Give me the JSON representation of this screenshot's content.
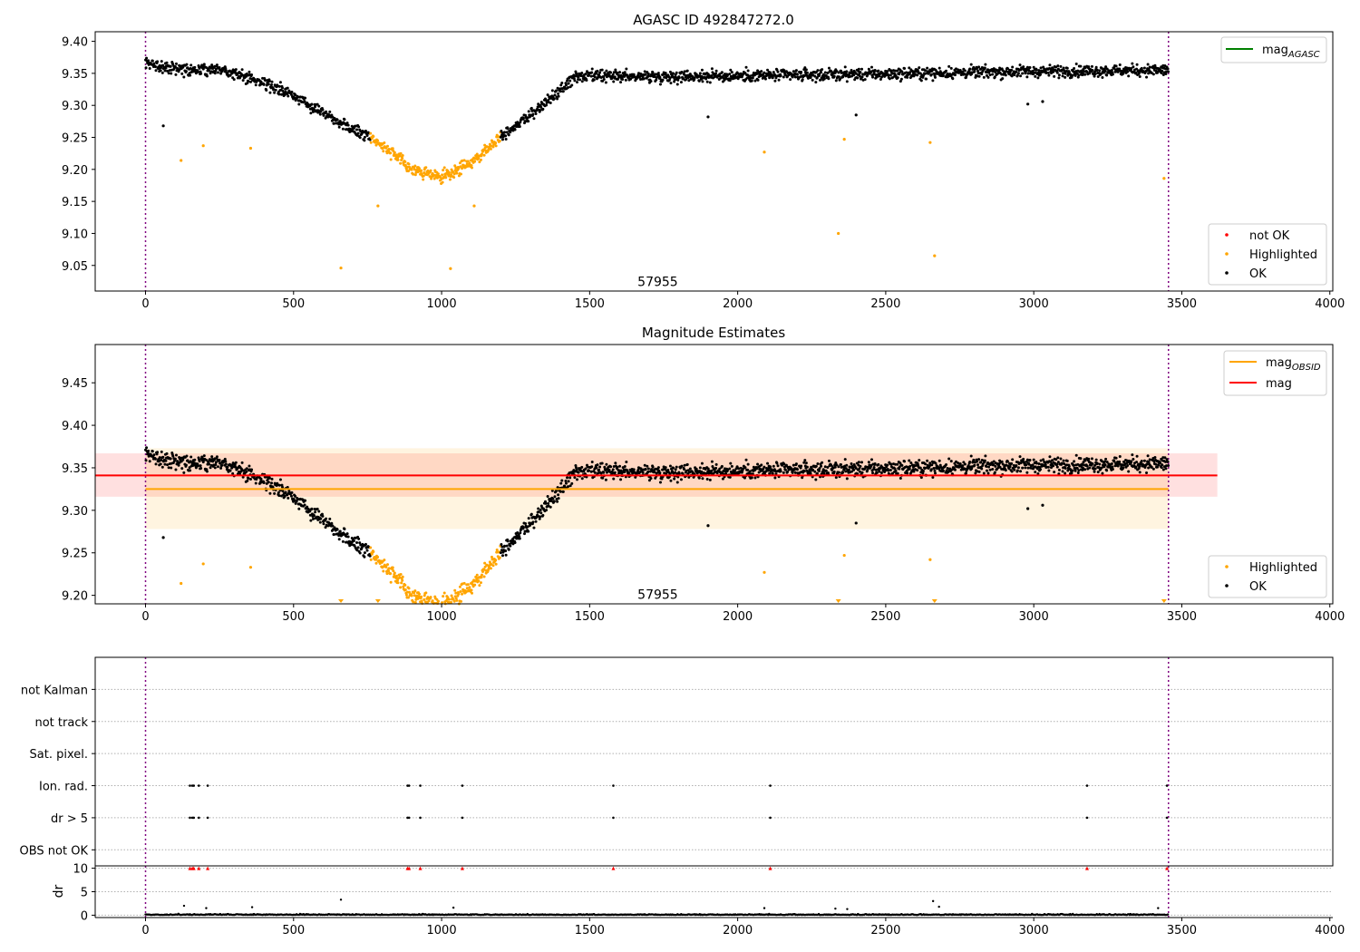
{
  "chart_data": [
    {
      "type": "scatter",
      "title": "AGASC ID 492847272.0",
      "xlim": [
        -170,
        4010
      ],
      "ylim": [
        9.01,
        9.415
      ],
      "x_ticks": [
        0,
        500,
        1000,
        1500,
        2000,
        2500,
        3000,
        3500,
        4000
      ],
      "y_ticks": [
        9.05,
        9.1,
        9.15,
        9.2,
        9.25,
        9.3,
        9.35,
        9.4
      ],
      "vlines": [
        0,
        3455
      ],
      "vline_color": "#800080",
      "annotation": {
        "text": "57955",
        "x": 1730,
        "y": 9.025
      },
      "line_legend": {
        "label": "mag",
        "sub": "AGASC",
        "color": "#008000",
        "position": "top-right"
      },
      "marker_legend": {
        "position": "lower-right",
        "items": [
          {
            "label": "not OK",
            "color": "#ff0000"
          },
          {
            "label": "Highlighted",
            "color": "#ffa500"
          },
          {
            "label": "OK",
            "color": "#000000"
          }
        ]
      },
      "series": [
        {
          "name": "OK",
          "color": "#000000",
          "trend": [
            [
              0,
              9.365
            ],
            [
              150,
              9.355
            ],
            [
              250,
              9.357
            ],
            [
              400,
              9.335
            ],
            [
              500,
              9.315
            ],
            [
              600,
              9.29
            ],
            [
              700,
              9.262
            ],
            [
              760,
              9.252
            ],
            [
              900,
              9.2
            ],
            [
              1000,
              9.187
            ],
            [
              1100,
              9.21
            ],
            [
              1200,
              9.252
            ],
            [
              1300,
              9.285
            ],
            [
              1400,
              9.322
            ],
            [
              1450,
              9.345
            ],
            [
              2000,
              9.346
            ],
            [
              2500,
              9.349
            ],
            [
              2950,
              9.353
            ],
            [
              3455,
              9.355
            ]
          ],
          "band": [
            [
              0,
              760
            ],
            [
              1200,
              3455
            ]
          ],
          "outliers": [
            [
              60,
              9.268
            ],
            [
              1900,
              9.282
            ],
            [
              2400,
              9.285
            ],
            [
              2980,
              9.302
            ],
            [
              3030,
              9.306
            ]
          ]
        },
        {
          "name": "Highlighted",
          "color": "#ffa500",
          "band": [
            [
              660,
              1230
            ]
          ],
          "outliers": [
            [
              120,
              9.214
            ],
            [
              195,
              9.237
            ],
            [
              355,
              9.233
            ],
            [
              660,
              9.046
            ],
            [
              785,
              9.143
            ],
            [
              1030,
              9.045
            ],
            [
              1110,
              9.143
            ],
            [
              2090,
              9.227
            ],
            [
              2340,
              9.1
            ],
            [
              2360,
              9.247
            ],
            [
              2650,
              9.242
            ],
            [
              2665,
              9.065
            ],
            [
              3440,
              9.186
            ]
          ]
        }
      ]
    },
    {
      "type": "scatter",
      "title": "Magnitude Estimates",
      "xlim": [
        -170,
        4010
      ],
      "ylim": [
        9.19,
        9.495
      ],
      "x_ticks": [
        0,
        500,
        1000,
        1500,
        2000,
        2500,
        3000,
        3500,
        4000
      ],
      "y_ticks": [
        9.2,
        9.25,
        9.3,
        9.35,
        9.4,
        9.45
      ],
      "vlines": [
        0,
        3455
      ],
      "annotation": {
        "text": "57955",
        "x": 1730,
        "y": 9.201
      },
      "line_legend": {
        "position": "top-right",
        "items": [
          {
            "label": "mag",
            "sub": "OBSID",
            "color": "#ffa500"
          },
          {
            "label": "mag",
            "sub": "",
            "color": "#ff0000"
          }
        ]
      },
      "marker_legend": {
        "position": "lower-right",
        "items": [
          {
            "label": "Highlighted",
            "color": "#ffa500"
          },
          {
            "label": "OK",
            "color": "#000000"
          }
        ]
      },
      "hlines": [
        {
          "y": 9.341,
          "x0": -170,
          "x1": 3620,
          "color": "#ff0000",
          "band": [
            9.316,
            9.367
          ],
          "band_color": "#ff0000",
          "band_opacity": 0.12
        },
        {
          "y": 9.325,
          "x0": 0,
          "x1": 3455,
          "color": "#ffa500",
          "band": [
            9.278,
            9.373
          ],
          "band_color": "#ffa500",
          "band_opacity": 0.12
        }
      ],
      "series": [
        {
          "name": "OK",
          "color": "#000000",
          "trend": [
            [
              0,
              9.365
            ],
            [
              150,
              9.355
            ],
            [
              250,
              9.357
            ],
            [
              400,
              9.335
            ],
            [
              500,
              9.315
            ],
            [
              600,
              9.29
            ],
            [
              700,
              9.262
            ],
            [
              760,
              9.252
            ],
            [
              900,
              9.2
            ],
            [
              1000,
              9.187
            ],
            [
              1100,
              9.21
            ],
            [
              1200,
              9.252
            ],
            [
              1300,
              9.285
            ],
            [
              1400,
              9.322
            ],
            [
              1450,
              9.345
            ],
            [
              2000,
              9.346
            ],
            [
              2500,
              9.349
            ],
            [
              2950,
              9.353
            ],
            [
              3455,
              9.355
            ]
          ],
          "band": [
            [
              0,
              760
            ],
            [
              1200,
              3455
            ]
          ],
          "outliers": [
            [
              60,
              9.268
            ],
            [
              1900,
              9.282
            ],
            [
              2400,
              9.285
            ],
            [
              2980,
              9.302
            ],
            [
              3030,
              9.306
            ]
          ]
        },
        {
          "name": "Highlighted",
          "color": "#ffa500",
          "band": [
            [
              660,
              1230
            ]
          ],
          "outliers": [
            [
              120,
              9.214
            ],
            [
              195,
              9.237
            ],
            [
              355,
              9.233
            ],
            [
              2090,
              9.227
            ],
            [
              2360,
              9.247
            ],
            [
              2650,
              9.242
            ]
          ],
          "clipped_at_bottom": [
            660,
            785,
            2340,
            2665,
            3440
          ]
        }
      ]
    },
    {
      "type": "scatter",
      "title": "",
      "xlim": [
        -170,
        4010
      ],
      "ylim_flags": [
        -0.5,
        6
      ],
      "y_tick_labels": [
        "OBS not OK",
        "dr > 5",
        "Ion. rad.",
        "Sat. pixel.",
        "not track",
        "not Kalman"
      ],
      "vlines": [
        0,
        3455
      ],
      "flag_rows": [
        {
          "label": "OBS not OK",
          "x": []
        },
        {
          "label": "dr > 5",
          "x": [
            150,
            158,
            163,
            180,
            210,
            885,
            890,
            928,
            1070,
            1580,
            2110,
            3180,
            3450
          ]
        },
        {
          "label": "Ion. rad.",
          "x": [
            150,
            158,
            163,
            180,
            210,
            885,
            890,
            928,
            1070,
            1580,
            2110,
            3180,
            3450
          ]
        },
        {
          "label": "Sat. pixel.",
          "x": []
        },
        {
          "label": "not track",
          "x": []
        },
        {
          "label": "not Kalman",
          "x": []
        }
      ]
    },
    {
      "type": "scatter",
      "title": "",
      "xlim": [
        -170,
        4010
      ],
      "ylim": [
        -0.5,
        10.5
      ],
      "ylabel": "dr",
      "y_ticks": [
        0,
        5,
        10
      ],
      "x_ticks": [
        0,
        500,
        1000,
        1500,
        2000,
        2500,
        3000,
        3500,
        4000
      ],
      "vlines": [
        0,
        3455
      ],
      "dr_baseline": [
        0,
        3455
      ],
      "dr_outliers": [
        [
          130,
          2.0
        ],
        [
          205,
          1.5
        ],
        [
          360,
          1.7
        ],
        [
          660,
          3.3
        ],
        [
          1040,
          1.6
        ],
        [
          2090,
          1.5
        ],
        [
          2330,
          1.4
        ],
        [
          2370,
          1.3
        ],
        [
          2660,
          3.0
        ],
        [
          2680,
          1.8
        ],
        [
          3420,
          1.5
        ]
      ],
      "clipped_at_top": {
        "color": "#ff0000",
        "x": [
          150,
          158,
          163,
          180,
          210,
          885,
          890,
          928,
          1070,
          1580,
          2110,
          3180,
          3450
        ]
      }
    }
  ]
}
